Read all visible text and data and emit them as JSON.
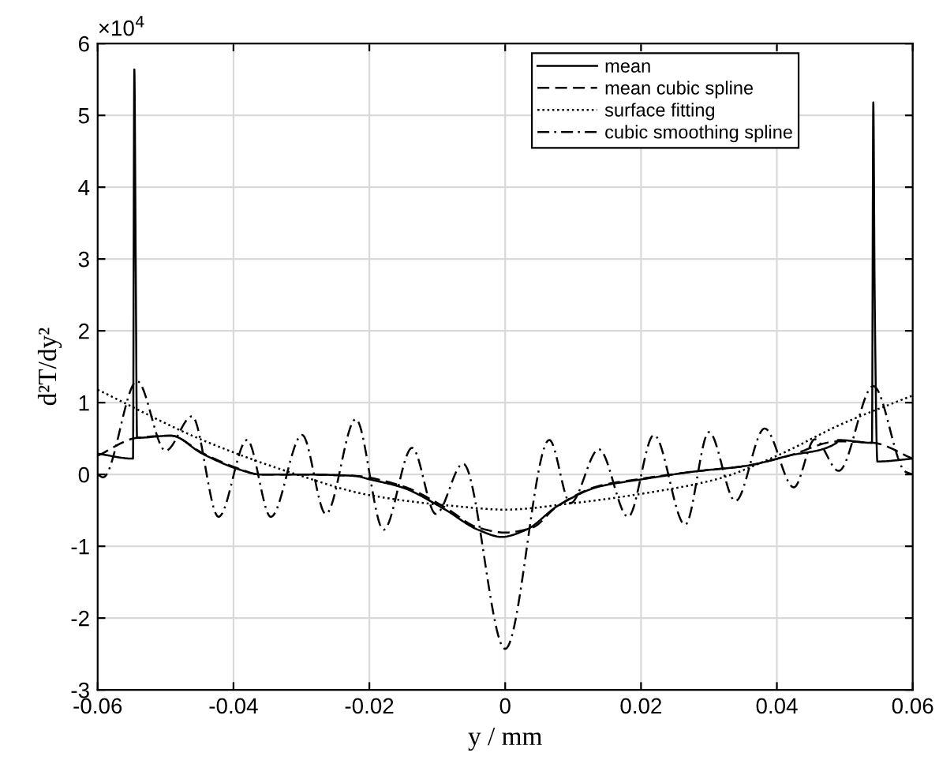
{
  "chart_data": {
    "type": "line",
    "xlabel": "y / mm",
    "ylabel": "d²T/dy²",
    "annotations": [
      "×10$^{4}$"
    ],
    "xlim": [
      -0.06,
      0.06
    ],
    "xticks": [
      -0.06,
      -0.04,
      -0.02,
      0,
      0.02,
      0.04,
      0.06
    ],
    "ylim": [
      -3,
      6
    ],
    "yticks": [
      -3,
      -2,
      -1,
      0,
      1,
      2,
      3,
      4,
      5,
      6
    ],
    "grid": true,
    "legend": "top right",
    "series": [
      {
        "name": "mean",
        "color": "#000000",
        "line_style": "solid",
        "x": [
          -0.06,
          -0.0548,
          -0.0546,
          -0.0544,
          -0.0542,
          -0.0492,
          -0.0446,
          -0.0392,
          -0.0361,
          -0.0307,
          -0.0222,
          -0.0199,
          -0.0152,
          -0.009,
          -0.004,
          -0.0005,
          0.0031,
          0.0077,
          0.0138,
          0.02,
          0.0278,
          0.0355,
          0.0417,
          0.0488,
          0.049,
          0.054,
          0.0542,
          0.0544,
          0.0548,
          0.06
        ],
        "values": [
          0.29,
          0.22,
          5.64,
          3.0,
          0.51,
          0.54,
          0.29,
          0.07,
          0.0,
          0.0,
          -0.02,
          -0.07,
          -0.18,
          -0.48,
          -0.77,
          -0.87,
          -0.77,
          -0.44,
          -0.17,
          -0.07,
          0.04,
          0.12,
          0.26,
          0.44,
          0.48,
          0.44,
          5.18,
          2.5,
          0.18,
          0.22
        ]
      },
      {
        "name": "mean cubic spline",
        "color": "#000000",
        "line_style": "dashed",
        "x": [
          -0.06,
          -0.0542,
          -0.0492,
          -0.0446,
          -0.0392,
          -0.0361,
          -0.0307,
          -0.0222,
          -0.0152,
          -0.009,
          -0.004,
          0,
          0.004,
          0.0077,
          0.0138,
          0.02,
          0.0278,
          0.0355,
          0.0417,
          0.049,
          0.0542,
          0.06
        ],
        "values": [
          0.26,
          0.51,
          0.54,
          0.3,
          0.08,
          0.0,
          0.0,
          -0.02,
          -0.16,
          -0.45,
          -0.74,
          -0.81,
          -0.74,
          -0.44,
          -0.16,
          -0.06,
          0.04,
          0.12,
          0.26,
          0.46,
          0.44,
          0.22
        ]
      },
      {
        "name": "surface fitting",
        "color": "#000000",
        "line_style": "dotted",
        "x": [
          -0.06,
          -0.0446,
          -0.0307,
          -0.0199,
          -0.0075,
          0,
          0.01,
          0.02,
          0.031,
          0.04,
          0.0495,
          0.06
        ],
        "values": [
          1.18,
          0.48,
          0.0,
          -0.29,
          -0.44,
          -0.49,
          -0.4,
          -0.27,
          -0.07,
          0.26,
          0.7,
          1.1
        ]
      },
      {
        "name": "cubic smoothing spline",
        "color": "#000000",
        "line_style": "dashdot",
        "x": [
          -0.06,
          -0.0592,
          -0.0542,
          -0.05,
          -0.0461,
          -0.0422,
          -0.038,
          -0.0345,
          -0.0299,
          -0.0264,
          -0.022,
          -0.0179,
          -0.0137,
          -0.0102,
          -0.0062,
          0,
          0.0065,
          0.0096,
          0.0138,
          0.0181,
          0.0219,
          0.0265,
          0.03,
          0.0339,
          0.0382,
          0.0425,
          0.0456,
          0.0491,
          0.0542,
          0.0589,
          0.06
        ],
        "values": [
          0.0,
          -0.04,
          1.3,
          0.33,
          0.81,
          -0.59,
          0.48,
          -0.59,
          0.55,
          -0.55,
          0.77,
          -0.77,
          0.37,
          -0.55,
          0.15,
          -2.43,
          0.48,
          -0.4,
          0.35,
          -0.59,
          0.55,
          -0.7,
          0.59,
          -0.37,
          0.64,
          -0.18,
          0.49,
          0.05,
          1.23,
          0.04,
          0.0
        ]
      }
    ]
  }
}
